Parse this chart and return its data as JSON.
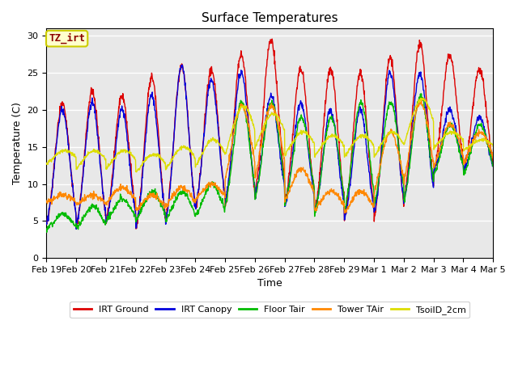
{
  "title": "Surface Temperatures",
  "xlabel": "Time",
  "ylabel": "Temperature (C)",
  "annotation_text": "TZ_irt",
  "annotation_color": "#8B0000",
  "annotation_bg": "#FFFFCC",
  "annotation_border": "#CCCC00",
  "ylim": [
    0,
    31
  ],
  "yticks": [
    0,
    5,
    10,
    15,
    20,
    25,
    30
  ],
  "series_names": [
    "IRT Ground",
    "IRT Canopy",
    "Floor Tair",
    "Tower TAir",
    "TsoilD_2cm"
  ],
  "series_colors": [
    "#DD0000",
    "#0000DD",
    "#00BB00",
    "#FF8800",
    "#DDDD00"
  ],
  "tick_labels": [
    "Feb 19",
    "Feb 20",
    "Feb 21",
    "Feb 22",
    "Feb 23",
    "Feb 24",
    "Feb 25",
    "Feb 26",
    "Feb 27",
    "Feb 28",
    "Feb 29",
    "Mar 1",
    "Mar 2",
    "Mar 3",
    "Mar 4",
    "Mar 5"
  ],
  "bg_color": "#E8E8E8",
  "fig_bg": "#FFFFFF",
  "n_days": 15,
  "pts_per_day": 96,
  "irt_ground_max": [
    21,
    22.5,
    22,
    24.5,
    26,
    25.5,
    27.5,
    29.5,
    25.5,
    25.5,
    25,
    27,
    29,
    27.5,
    25.5
  ],
  "irt_ground_min": [
    2.5,
    2,
    3,
    1.5,
    3,
    4.5,
    5,
    6.5,
    5.5,
    4,
    3,
    3,
    5.5,
    10,
    10
  ],
  "irt_canopy_max": [
    20,
    21,
    20,
    22,
    26,
    24,
    25,
    22,
    21,
    20,
    20,
    25,
    25,
    20,
    19
  ],
  "irt_canopy_min": [
    3,
    2.5,
    3,
    2,
    2.5,
    5,
    6,
    7,
    5.5,
    4.5,
    3.5,
    4,
    6,
    11,
    11
  ],
  "floor_tair_max": [
    6,
    7,
    8,
    9,
    9,
    10,
    21,
    21,
    19,
    19,
    21,
    21,
    22,
    18,
    18
  ],
  "floor_tair_min": [
    3.5,
    3.5,
    4.5,
    4.5,
    4.5,
    5,
    4.5,
    5.5,
    5,
    3.5,
    3.5,
    4.5,
    5,
    10,
    10
  ],
  "tower_tair_max": [
    8.5,
    8.5,
    9.5,
    8.5,
    9.5,
    10,
    20.5,
    20.5,
    12,
    9,
    9,
    17,
    21,
    18,
    17
  ],
  "tower_tair_min": [
    7,
    6.5,
    6.5,
    5.5,
    6,
    7,
    6.5,
    7,
    6,
    5.5,
    5,
    5.5,
    6,
    10,
    11
  ],
  "tsoild_max": [
    14.5,
    14.5,
    14.5,
    14,
    15,
    16,
    20.5,
    19.5,
    17,
    16.5,
    16.5,
    17,
    21.5,
    17,
    16
  ],
  "tsoild_min": [
    11.5,
    10.5,
    10.5,
    10,
    10,
    10,
    10,
    12,
    12,
    12,
    12,
    11.5,
    11.5,
    13.5,
    13.5
  ],
  "spike_sharpness": 8.0,
  "soil_sharpness": 2.5
}
